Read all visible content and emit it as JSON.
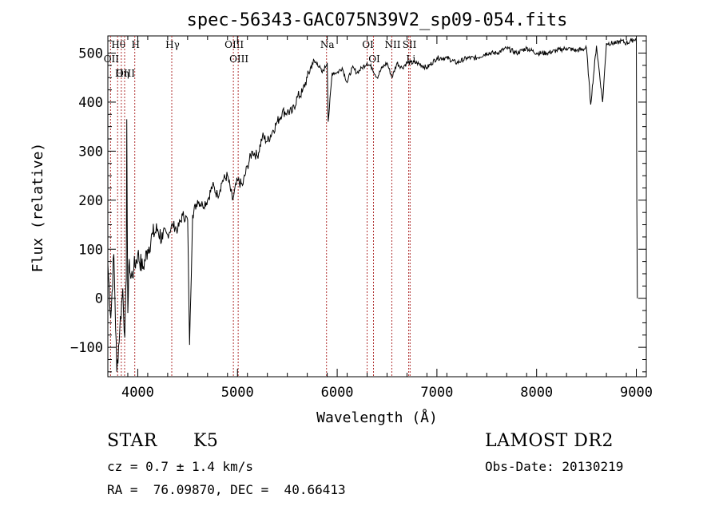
{
  "chart_data": {
    "type": "line",
    "title": "spec-56343-GAC075N39V2_sp09-054.fits",
    "xlabel": "Wavelength (Å)",
    "ylabel": "Flux (relative)",
    "xlim": [
      3700,
      9100
    ],
    "ylim": [
      -160,
      535
    ],
    "xticks": [
      4000,
      5000,
      6000,
      7000,
      8000,
      9000
    ],
    "yticks": [
      -100,
      0,
      100,
      200,
      300,
      400,
      500
    ],
    "ytick_labels": [
      "−100",
      "0",
      "100",
      "200",
      "300",
      "400",
      "500"
    ],
    "grid": false,
    "series": [
      {
        "x": [
          3700,
          3730,
          3760,
          3790,
          3820,
          3850,
          3870,
          3885,
          3890,
          3900,
          3915,
          3930,
          3960,
          4000,
          4050,
          4100,
          4150,
          4200,
          4250,
          4300,
          4350,
          4400,
          4450,
          4500,
          4520,
          4550,
          4600,
          4650,
          4700,
          4750,
          4800,
          4850,
          4900,
          4950,
          5000,
          5050,
          5100,
          5150,
          5200,
          5250,
          5300,
          5350,
          5400,
          5450,
          5500,
          5550,
          5600,
          5650,
          5700,
          5750,
          5800,
          5850,
          5900,
          5910,
          5950,
          6000,
          6050,
          6100,
          6150,
          6200,
          6250,
          6300,
          6350,
          6400,
          6450,
          6500,
          6550,
          6600,
          6650,
          6700,
          6800,
          6900,
          7000,
          7100,
          7200,
          7300,
          7400,
          7500,
          7600,
          7700,
          7800,
          7900,
          8000,
          8100,
          8200,
          8300,
          8400,
          8500,
          8542,
          8600,
          8662,
          8700,
          8800,
          8850,
          8900,
          8950,
          9000,
          9005,
          9010
        ],
        "y": [
          70,
          -40,
          90,
          -150,
          -60,
          20,
          -80,
          40,
          365,
          -30,
          80,
          40,
          60,
          90,
          60,
          100,
          130,
          140,
          120,
          130,
          150,
          140,
          170,
          160,
          -95,
          170,
          200,
          190,
          200,
          230,
          210,
          240,
          250,
          200,
          240,
          230,
          270,
          300,
          290,
          330,
          320,
          340,
          360,
          380,
          380,
          380,
          410,
          420,
          450,
          480,
          480,
          460,
          480,
          360,
          460,
          460,
          470,
          440,
          470,
          460,
          470,
          480,
          470,
          450,
          470,
          480,
          450,
          480,
          470,
          480,
          480,
          470,
          490,
          490,
          480,
          490,
          490,
          500,
          500,
          510,
          500,
          510,
          500,
          500,
          505,
          510,
          505,
          510,
          395,
          515,
          400,
          520,
          520,
          525,
          520,
          525,
          530,
          200,
          0
        ]
      }
    ],
    "spectral_lines": [
      {
        "label": "Hθ",
        "x": 3798
      },
      {
        "label": "OII",
        "x": 3727
      },
      {
        "label": "OIII",
        "x": 3868
      },
      {
        "label": "Hη",
        "x": 3835
      },
      {
        "label": "H",
        "x": 3970
      },
      {
        "label": "Hγ",
        "x": 4341
      },
      {
        "label": "OIII",
        "x": 4959
      },
      {
        "label": "OIII",
        "x": 5007
      },
      {
        "label": "Na",
        "x": 5893
      },
      {
        "label": "OI",
        "x": 6300
      },
      {
        "label": "OI",
        "x": 6364
      },
      {
        "label": "NII",
        "x": 6548
      },
      {
        "label": "SII",
        "x": 6717
      },
      {
        "label": "Li",
        "x": 6731
      }
    ]
  },
  "info": {
    "class_label": "STAR",
    "subclass": "K5",
    "cz_text": "cz = 0.7 ± 1.4 km/s",
    "radec_text": "RA =  76.09870, DEC =  40.66413",
    "survey": "LAMOST DR2",
    "obs_date": "Obs-Date: 20130219"
  }
}
